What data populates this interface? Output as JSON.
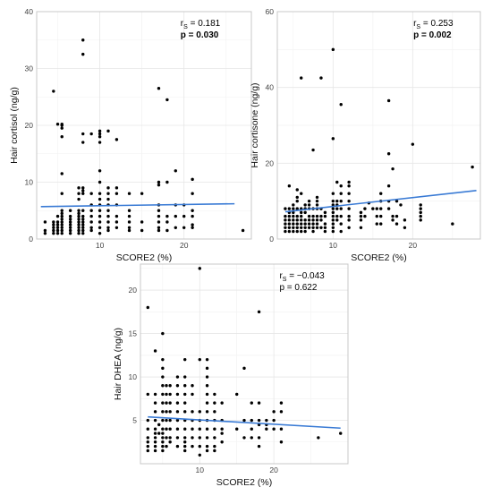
{
  "colors": {
    "points": "#000000",
    "fit_line": "#3a7bd5",
    "grid": "#e6e6e6"
  },
  "chart_data": [
    {
      "type": "scatter",
      "xlabel": "SCORE2 (%)",
      "ylabel": "Hair cortisol (ng/g)",
      "xlim": [
        2.5,
        28
      ],
      "ylim": [
        0,
        40
      ],
      "xticks": [
        10,
        20
      ],
      "yticks": [
        0,
        10,
        20,
        30,
        40
      ],
      "grid": true,
      "stat_r_prefix": "r",
      "stat_r_sub": "S",
      "stat_r_value": " = 0.181",
      "stat_p": "p = 0.030",
      "p_bold": true,
      "fit": {
        "x": [
          3,
          26
        ],
        "y": [
          5.7,
          6.2
        ]
      },
      "points": {
        "x": [
          3.5,
          3.5,
          3.5,
          4.5,
          4.5,
          4.5,
          4.5,
          4.5,
          4.5,
          5,
          5,
          5,
          5,
          5,
          5,
          5,
          5.5,
          5.5,
          5.5,
          5.5,
          5.5,
          5.5,
          5.5,
          5.5,
          5.5,
          5.5,
          5.5,
          5.5,
          5.5,
          5.5,
          5.5,
          6.5,
          6.5,
          6.5,
          6.5,
          6.5,
          6.5,
          6.5,
          6.5,
          7.5,
          7.5,
          7.5,
          7.5,
          7.5,
          7.5,
          7.5,
          7.5,
          7.5,
          7.5,
          7.5,
          7.5,
          8,
          8,
          8,
          8,
          8,
          8,
          8,
          8,
          8,
          8,
          8,
          8,
          8,
          8,
          8,
          9,
          9,
          9,
          9,
          9,
          9,
          9,
          9,
          10,
          10,
          10,
          10,
          10,
          10,
          10,
          10,
          10,
          10,
          10,
          10,
          10,
          10,
          11,
          11,
          11,
          11,
          11,
          11,
          11,
          11,
          11,
          11,
          12,
          12,
          12,
          12,
          12,
          12,
          12,
          13.5,
          13.5,
          13.5,
          13.5,
          13.5,
          13.5,
          15,
          15,
          15,
          17,
          17,
          17,
          17,
          17,
          17,
          17,
          17,
          17,
          18,
          18,
          18,
          18,
          18,
          19,
          19,
          19,
          19,
          20,
          20,
          20,
          21,
          21,
          21,
          21,
          21,
          21,
          27
        ],
        "y": [
          1,
          1.5,
          3,
          1,
          1.5,
          2,
          2.5,
          3,
          26,
          1,
          1.5,
          2,
          2.5,
          3,
          4,
          20.2,
          1,
          1.5,
          2,
          2.5,
          3,
          3.5,
          4,
          4.5,
          5,
          8,
          11.5,
          18,
          19.5,
          20,
          20.2,
          1,
          1.5,
          2,
          2.5,
          3,
          3.5,
          4,
          5,
          1,
          1.5,
          2,
          2.5,
          3,
          3.5,
          4,
          4.5,
          5,
          7,
          8,
          9,
          1,
          1.5,
          2,
          2.5,
          3,
          3.5,
          4,
          5,
          8,
          8.5,
          9,
          17,
          18.5,
          32.5,
          35,
          1.5,
          2,
          3,
          4,
          5,
          6,
          8,
          18.5,
          1,
          2,
          3,
          4,
          5,
          6,
          7,
          8,
          10,
          12,
          17,
          18,
          18.5,
          19,
          1.5,
          2,
          3,
          4,
          5,
          6,
          7,
          8,
          9,
          19,
          2,
          3,
          4,
          6,
          8,
          9,
          17.5,
          1.5,
          2,
          3,
          4,
          5,
          8,
          1.5,
          3,
          8,
          1.5,
          2,
          3,
          4,
          5,
          6,
          9.5,
          10,
          26.5,
          1.5,
          3,
          4,
          10,
          24.5,
          2,
          4,
          6,
          12,
          2,
          4,
          6,
          2,
          2.5,
          4,
          5,
          8,
          10.5,
          1.5
        ]
      }
    },
    {
      "type": "scatter",
      "xlabel": "SCORE2 (%)",
      "ylabel": "Hair cortisone (ng/g)",
      "xlim": [
        3,
        28.5
      ],
      "ylim": [
        0,
        60
      ],
      "xticks": [
        10,
        20
      ],
      "yticks": [
        0,
        20,
        40,
        60
      ],
      "grid": true,
      "stat_r_prefix": "r",
      "stat_r_sub": "S",
      "stat_r_value": " = 0.253",
      "stat_p": "p = 0.002",
      "p_bold": true,
      "fit": {
        "x": [
          4,
          28
        ],
        "y": [
          7.2,
          12.8
        ]
      },
      "points": {
        "x": [
          4,
          4,
          4,
          4,
          4,
          4,
          4.5,
          4.5,
          4.5,
          4.5,
          4.5,
          4.5,
          4.5,
          4.5,
          5,
          5,
          5,
          5,
          5,
          5,
          5,
          5,
          5.5,
          5.5,
          5.5,
          5.5,
          5.5,
          5.5,
          5.5,
          5.5,
          5.5,
          6,
          6,
          6,
          6,
          6,
          6,
          6,
          6,
          6,
          6.5,
          6.5,
          6.5,
          6.5,
          6.5,
          6.5,
          6.5,
          7,
          7,
          7,
          7,
          7,
          7,
          7,
          7.5,
          7.5,
          7.5,
          7.5,
          7.5,
          7.5,
          7.5,
          8,
          8,
          8,
          8,
          8,
          8,
          8,
          8,
          8.5,
          8.5,
          8.5,
          8.5,
          8.5,
          9,
          9,
          9,
          9,
          9,
          10,
          10,
          10,
          10,
          10,
          10,
          10,
          10,
          10,
          10,
          10,
          10,
          10.5,
          10.5,
          10.5,
          10.5,
          10.5,
          10.5,
          11,
          11,
          11,
          11,
          11,
          11,
          11,
          11,
          12,
          12,
          12,
          12,
          12,
          12,
          12,
          12,
          13.5,
          13.5,
          13.5,
          13.5,
          14,
          14,
          14.5,
          15,
          15.5,
          15.5,
          15.5,
          16,
          16,
          16,
          16,
          16,
          17,
          17,
          17,
          17,
          17,
          17.5,
          17.5,
          17.5,
          18,
          18,
          18,
          18.5,
          19,
          19,
          20,
          21,
          21,
          21,
          21,
          21,
          25,
          27.5
        ],
        "y": [
          2,
          3,
          4,
          5,
          6,
          8,
          2,
          3,
          4,
          5,
          6,
          7,
          8,
          14,
          2,
          3,
          4,
          5,
          6,
          7,
          8,
          9,
          2,
          3,
          4,
          5,
          6,
          8,
          10,
          11,
          13,
          2,
          3,
          4,
          5,
          6,
          7,
          8,
          12,
          42.5,
          2,
          3,
          4,
          5,
          7,
          8,
          9,
          3,
          4,
          5,
          6,
          8,
          9,
          10,
          2,
          3,
          4,
          5,
          6,
          8,
          23.5,
          3,
          4,
          5,
          6,
          8,
          9,
          10,
          11,
          3,
          5,
          6,
          8,
          42.5,
          2,
          3,
          4,
          6,
          7,
          2,
          3,
          4,
          5,
          6,
          7,
          8,
          9,
          10,
          12,
          26.5,
          50,
          5,
          6,
          8,
          9,
          10,
          15,
          2,
          4,
          6,
          8,
          10,
          12,
          14,
          35.5,
          3,
          5,
          6,
          8,
          10,
          12,
          14,
          15,
          3,
          5,
          6,
          7,
          6,
          8,
          9.5,
          8,
          4,
          6,
          8,
          4,
          6,
          8,
          10,
          12,
          8,
          10,
          14,
          22.5,
          36.5,
          5,
          6,
          18.5,
          4,
          6,
          10,
          9,
          3,
          5,
          25,
          5,
          6,
          7,
          8,
          9,
          4,
          19
        ]
      }
    },
    {
      "type": "scatter",
      "xlabel": "SCORE2 (%)",
      "ylabel": "Hair DHEA (ng/g)",
      "xlim": [
        2,
        30
      ],
      "ylim": [
        0,
        23
      ],
      "xticks": [
        10,
        20
      ],
      "yticks": [
        5,
        10,
        15,
        20
      ],
      "grid": true,
      "stat_r_prefix": "r",
      "stat_r_sub": "S",
      "stat_r_value": " = −0.043",
      "stat_p": "p = 0.622",
      "p_bold": false,
      "fit": {
        "x": [
          3,
          29
        ],
        "y": [
          5.4,
          4.1
        ]
      },
      "points": {
        "x": [
          3,
          3,
          3,
          3,
          3,
          3,
          3,
          3,
          4,
          4,
          4,
          4,
          4,
          4,
          4,
          4,
          4,
          4,
          4,
          4.5,
          4.5,
          5,
          5,
          5,
          5,
          5,
          5,
          5,
          5,
          5,
          5,
          5,
          5,
          5,
          5,
          5,
          5.5,
          5.5,
          5.5,
          5.5,
          5.5,
          5.5,
          5.5,
          5.5,
          6,
          6,
          6,
          6,
          6,
          6,
          6,
          6,
          7,
          7,
          7,
          7,
          7,
          7,
          7,
          7,
          7,
          8,
          8,
          8,
          8,
          8,
          8,
          8,
          8,
          8,
          8,
          8,
          8,
          9,
          9,
          9,
          9,
          9,
          9,
          9,
          10,
          10,
          10,
          10,
          10,
          10,
          10,
          10,
          11,
          11,
          11,
          11,
          11,
          11,
          11,
          11,
          11,
          11,
          11,
          11,
          12,
          12,
          12,
          12,
          12,
          12,
          12,
          12,
          13,
          13,
          13,
          13,
          13,
          15,
          15,
          16,
          16,
          16,
          17,
          17,
          17,
          17,
          18,
          18,
          18,
          18,
          18,
          18,
          19,
          19,
          19,
          20,
          20,
          20,
          21,
          21,
          21,
          21,
          26,
          29
        ],
        "y": [
          1.5,
          2,
          2.5,
          3,
          4,
          5,
          8,
          18,
          1.5,
          2,
          2.5,
          3,
          3.5,
          4,
          5,
          6,
          7,
          8,
          13,
          3.5,
          4.5,
          1.5,
          2,
          2.5,
          3,
          3.5,
          4,
          5,
          6,
          7,
          8,
          9,
          10,
          11,
          12,
          15,
          2,
          3,
          4,
          5,
          6,
          7,
          8,
          9,
          2.5,
          3,
          4,
          5,
          6,
          7,
          8,
          9,
          2,
          3,
          4,
          5,
          6,
          7,
          8,
          9,
          10,
          1.5,
          2,
          2.5,
          3,
          4,
          5,
          6,
          7,
          8,
          9,
          10,
          12,
          2,
          3,
          4,
          5,
          6,
          8,
          9,
          1,
          2,
          3,
          4,
          5,
          6,
          12,
          22.5,
          1.5,
          2,
          3,
          4,
          5,
          6,
          7,
          8,
          9,
          10,
          11,
          12,
          1.5,
          2,
          3,
          4,
          5,
          6,
          7,
          8,
          2.5,
          3.5,
          4,
          5,
          7,
          4,
          8,
          3,
          5,
          11,
          3,
          4,
          5,
          7,
          2,
          3,
          4.5,
          5,
          7,
          17.5,
          4,
          4.5,
          5,
          4,
          5,
          6,
          2.5,
          4,
          6,
          7,
          3,
          3.5
        ]
      }
    }
  ]
}
